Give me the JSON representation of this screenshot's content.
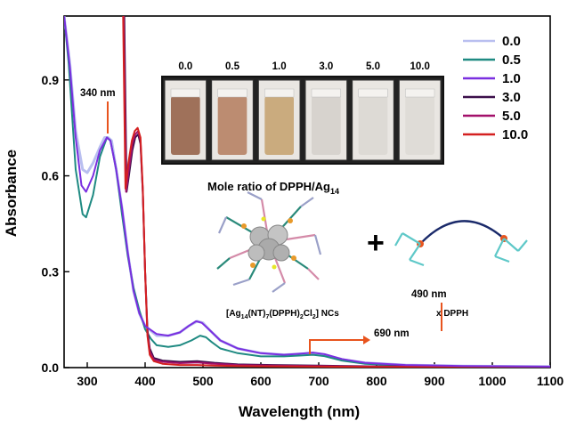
{
  "chart_data": {
    "type": "line",
    "xlabel": "Wavelength (nm)",
    "ylabel": "Absorbance",
    "xlim": [
      260,
      1100
    ],
    "ylim": [
      0,
      1.1
    ],
    "x_ticks": [
      "300",
      "400",
      "500",
      "600",
      "700",
      "800",
      "900",
      "1000",
      "1100"
    ],
    "y_ticks": [
      "0.0",
      "0.3",
      "0.6",
      "0.9"
    ],
    "legend_position": "top-right",
    "series": [
      {
        "name": "0.0",
        "color": "#b9bff0",
        "points": [
          [
            260,
            1.1
          ],
          [
            270,
            0.95
          ],
          [
            280,
            0.74
          ],
          [
            292,
            0.62
          ],
          [
            300,
            0.61
          ],
          [
            310,
            0.64
          ],
          [
            322,
            0.69
          ],
          [
            330,
            0.72
          ],
          [
            336,
            0.72
          ],
          [
            342,
            0.71
          ],
          [
            350,
            0.62
          ],
          [
            360,
            0.5
          ],
          [
            370,
            0.36
          ],
          [
            380,
            0.24
          ],
          [
            390,
            0.17
          ],
          [
            400,
            0.13
          ],
          [
            420,
            0.1
          ],
          [
            440,
            0.1
          ],
          [
            460,
            0.11
          ],
          [
            475,
            0.13
          ],
          [
            490,
            0.145
          ],
          [
            500,
            0.14
          ],
          [
            510,
            0.12
          ],
          [
            530,
            0.085
          ],
          [
            560,
            0.06
          ],
          [
            600,
            0.045
          ],
          [
            640,
            0.04
          ],
          [
            670,
            0.043
          ],
          [
            690,
            0.045
          ],
          [
            710,
            0.04
          ],
          [
            740,
            0.025
          ],
          [
            780,
            0.015
          ],
          [
            850,
            0.008
          ],
          [
            950,
            0.005
          ],
          [
            1100,
            0.003
          ]
        ]
      },
      {
        "name": "0.5",
        "color": "#1f8a82",
        "points": [
          [
            260,
            1.1
          ],
          [
            268,
            0.95
          ],
          [
            280,
            0.62
          ],
          [
            292,
            0.48
          ],
          [
            298,
            0.47
          ],
          [
            310,
            0.54
          ],
          [
            322,
            0.66
          ],
          [
            334,
            0.72
          ],
          [
            340,
            0.71
          ],
          [
            350,
            0.62
          ],
          [
            360,
            0.48
          ],
          [
            370,
            0.35
          ],
          [
            380,
            0.25
          ],
          [
            390,
            0.18
          ],
          [
            400,
            0.12
          ],
          [
            410,
            0.09
          ],
          [
            420,
            0.07
          ],
          [
            440,
            0.065
          ],
          [
            460,
            0.07
          ],
          [
            480,
            0.085
          ],
          [
            495,
            0.1
          ],
          [
            505,
            0.095
          ],
          [
            515,
            0.08
          ],
          [
            530,
            0.06
          ],
          [
            560,
            0.045
          ],
          [
            600,
            0.035
          ],
          [
            640,
            0.035
          ],
          [
            670,
            0.038
          ],
          [
            690,
            0.04
          ],
          [
            710,
            0.036
          ],
          [
            740,
            0.022
          ],
          [
            780,
            0.012
          ],
          [
            850,
            0.006
          ],
          [
            950,
            0.004
          ],
          [
            1100,
            0.002
          ]
        ]
      },
      {
        "name": "1.0",
        "color": "#7a2fe0",
        "points": [
          [
            260,
            1.1
          ],
          [
            270,
            0.94
          ],
          [
            280,
            0.72
          ],
          [
            290,
            0.57
          ],
          [
            298,
            0.55
          ],
          [
            310,
            0.6
          ],
          [
            322,
            0.68
          ],
          [
            334,
            0.72
          ],
          [
            340,
            0.71
          ],
          [
            350,
            0.62
          ],
          [
            360,
            0.5
          ],
          [
            370,
            0.36
          ],
          [
            380,
            0.24
          ],
          [
            390,
            0.17
          ],
          [
            400,
            0.13
          ],
          [
            420,
            0.105
          ],
          [
            440,
            0.1
          ],
          [
            460,
            0.11
          ],
          [
            475,
            0.13
          ],
          [
            488,
            0.145
          ],
          [
            498,
            0.14
          ],
          [
            510,
            0.12
          ],
          [
            530,
            0.085
          ],
          [
            560,
            0.06
          ],
          [
            600,
            0.045
          ],
          [
            640,
            0.04
          ],
          [
            670,
            0.044
          ],
          [
            690,
            0.047
          ],
          [
            710,
            0.042
          ],
          [
            740,
            0.027
          ],
          [
            780,
            0.015
          ],
          [
            850,
            0.008
          ],
          [
            950,
            0.005
          ],
          [
            1100,
            0.003
          ]
        ]
      },
      {
        "name": "3.0",
        "color": "#3b0f4a",
        "points": [
          [
            364,
            1.1
          ],
          [
            368,
            0.55
          ],
          [
            372,
            0.6
          ],
          [
            378,
            0.68
          ],
          [
            383,
            0.72
          ],
          [
            388,
            0.73
          ],
          [
            392,
            0.7
          ],
          [
            396,
            0.55
          ],
          [
            400,
            0.3
          ],
          [
            404,
            0.12
          ],
          [
            408,
            0.06
          ],
          [
            415,
            0.03
          ],
          [
            430,
            0.022
          ],
          [
            460,
            0.018
          ],
          [
            490,
            0.02
          ],
          [
            520,
            0.015
          ],
          [
            560,
            0.01
          ],
          [
            620,
            0.008
          ],
          [
            700,
            0.006
          ],
          [
            800,
            0.004
          ],
          [
            1100,
            0.002
          ]
        ]
      },
      {
        "name": "5.0",
        "color": "#a3106a",
        "points": [
          [
            363,
            1.1
          ],
          [
            367,
            0.55
          ],
          [
            372,
            0.62
          ],
          [
            378,
            0.7
          ],
          [
            383,
            0.73
          ],
          [
            388,
            0.74
          ],
          [
            392,
            0.71
          ],
          [
            396,
            0.55
          ],
          [
            400,
            0.3
          ],
          [
            404,
            0.11
          ],
          [
            408,
            0.05
          ],
          [
            415,
            0.025
          ],
          [
            430,
            0.018
          ],
          [
            460,
            0.014
          ],
          [
            490,
            0.016
          ],
          [
            520,
            0.012
          ],
          [
            560,
            0.008
          ],
          [
            620,
            0.006
          ],
          [
            700,
            0.005
          ],
          [
            800,
            0.003
          ],
          [
            1100,
            0.002
          ]
        ]
      },
      {
        "name": "10.0",
        "color": "#d42020",
        "points": [
          [
            362,
            1.1
          ],
          [
            366,
            0.56
          ],
          [
            371,
            0.64
          ],
          [
            377,
            0.71
          ],
          [
            382,
            0.74
          ],
          [
            387,
            0.75
          ],
          [
            392,
            0.72
          ],
          [
            396,
            0.56
          ],
          [
            400,
            0.3
          ],
          [
            404,
            0.1
          ],
          [
            408,
            0.04
          ],
          [
            415,
            0.02
          ],
          [
            430,
            0.012
          ],
          [
            460,
            0.008
          ],
          [
            490,
            0.008
          ],
          [
            520,
            0.006
          ],
          [
            560,
            0.005
          ],
          [
            620,
            0.004
          ],
          [
            700,
            0.003
          ],
          [
            800,
            0.002
          ],
          [
            1100,
            0.001
          ]
        ]
      }
    ],
    "annotations": {
      "peak_340": "340 nm",
      "peak_490": "490 nm",
      "peak_690": "690 nm"
    }
  },
  "inset": {
    "vial_labels": [
      "0.0",
      "0.5",
      "1.0",
      "3.0",
      "5.0",
      "10.0"
    ],
    "vial_colors": [
      "#9b6a52",
      "#b9876a",
      "#c8a878",
      "#d6d2cc",
      "#dcd9d4",
      "#dedbd6"
    ],
    "caption_main": "Mole ratio of DPPH/Ag",
    "caption_sub": "14",
    "cluster_label": {
      "p1": "[Ag",
      "s1": "14",
      "p2": "(NT)",
      "s2": "7",
      "p3": "(DPPH)",
      "s3": "2",
      "p4": "Cl",
      "s4": "2",
      "p5": "] NCs"
    },
    "plus_sign": "+",
    "ligand_label": "x DPPH"
  }
}
